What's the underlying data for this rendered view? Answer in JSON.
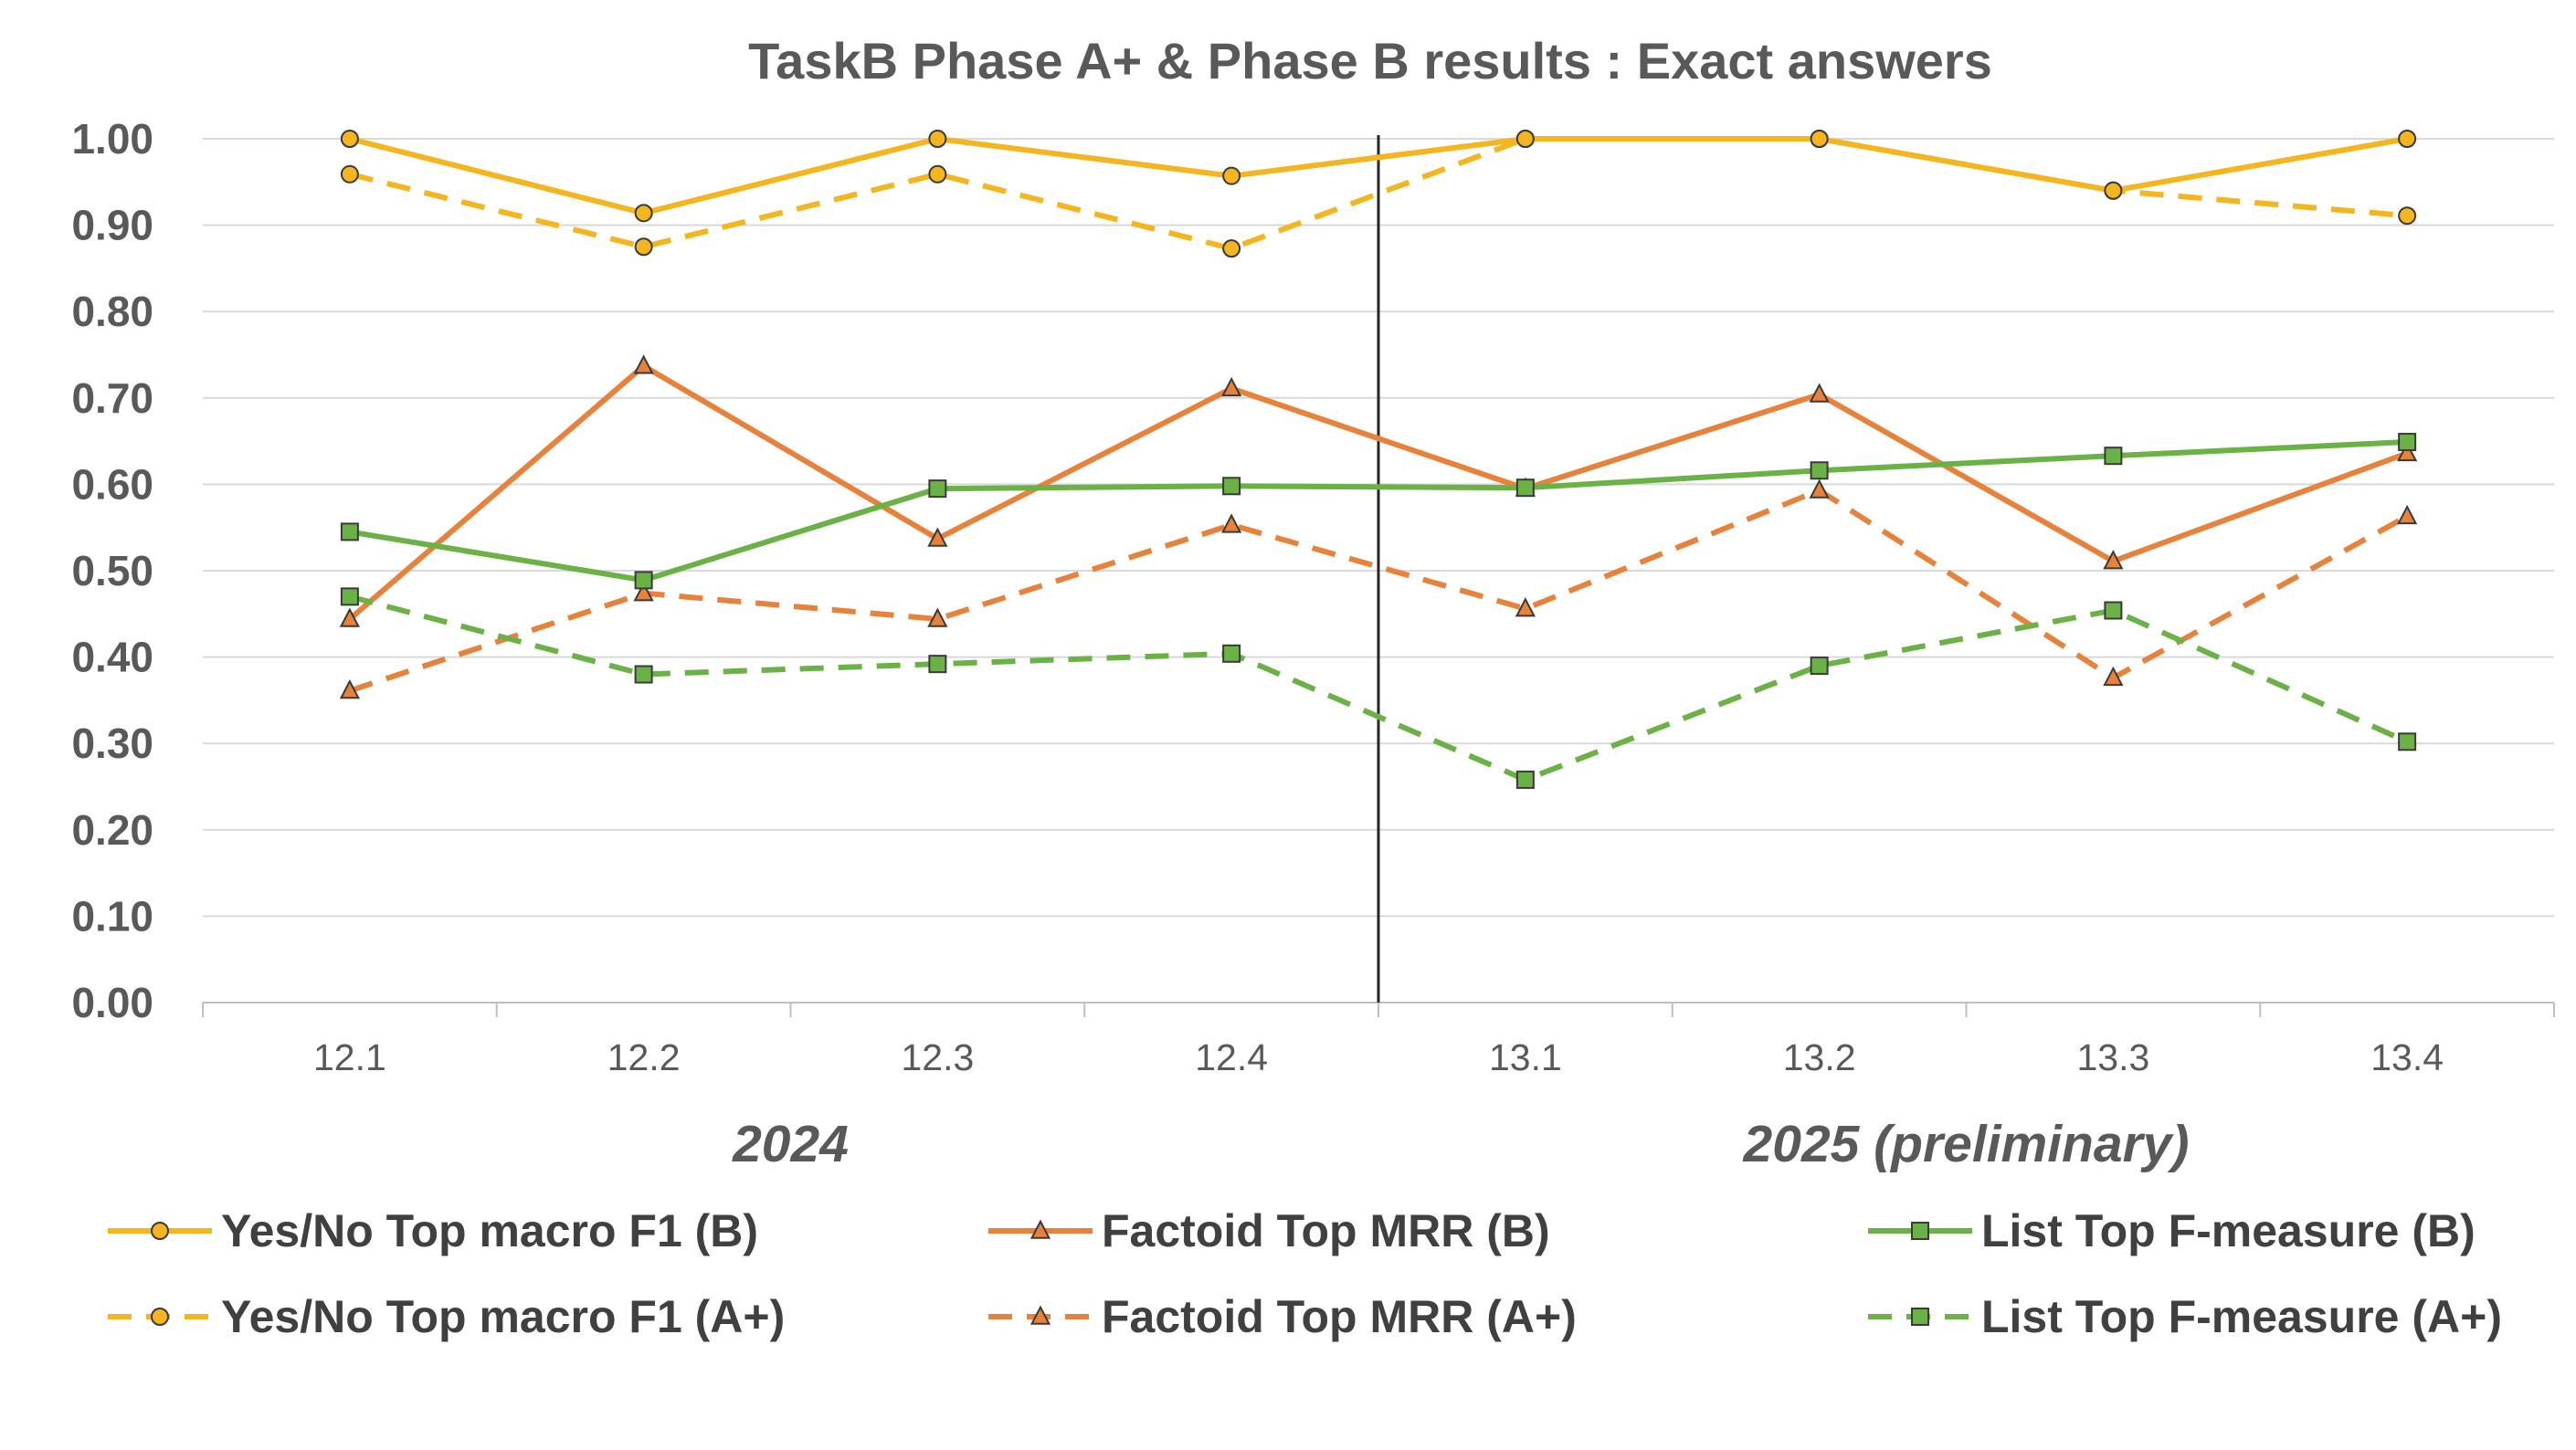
{
  "chart_data": {
    "type": "line",
    "title": "TaskB Phase A+ & Phase B results : Exact answers",
    "categories": [
      "12.1",
      "12.2",
      "12.3",
      "12.4",
      "13.1",
      "13.2",
      "13.3",
      "13.4"
    ],
    "groups": [
      {
        "label": "2024",
        "categories": [
          "12.1",
          "12.2",
          "12.3",
          "12.4"
        ]
      },
      {
        "label": "2025 (preliminary)",
        "categories": [
          "13.1",
          "13.2",
          "13.3",
          "13.4"
        ]
      }
    ],
    "ylim": [
      0,
      1
    ],
    "yticks": [
      "0.00",
      "0.10",
      "0.20",
      "0.30",
      "0.40",
      "0.50",
      "0.60",
      "0.70",
      "0.80",
      "0.90",
      "1.00"
    ],
    "grid": true,
    "legend_position": "bottom",
    "divider_after_category": "12.4",
    "series": [
      {
        "name": "Yes/No Top macro F1 (B)",
        "color": "#F5B51E",
        "dash": "solid",
        "marker": "circle",
        "values": [
          1.0,
          0.914,
          1.0,
          0.957,
          1.0,
          1.0,
          0.94,
          1.0
        ]
      },
      {
        "name": "Yes/No Top macro F1 (A+)",
        "color": "#F5B51E",
        "dash": "dashed",
        "marker": "circle",
        "values": [
          0.959,
          0.875,
          0.959,
          0.873,
          1.0,
          1.0,
          0.94,
          0.911
        ]
      },
      {
        "name": "Factoid Top MRR (B)",
        "color": "#E8823A",
        "dash": "solid",
        "marker": "triangle",
        "values": [
          0.444,
          0.737,
          0.537,
          0.711,
          0.595,
          0.704,
          0.511,
          0.636
        ]
      },
      {
        "name": "Factoid Top MRR (A+)",
        "color": "#E8823A",
        "dash": "dashed",
        "marker": "triangle",
        "values": [
          0.361,
          0.474,
          0.444,
          0.553,
          0.456,
          0.593,
          0.376,
          0.563
        ]
      },
      {
        "name": "List Top F-measure (B)",
        "color": "#6AB245",
        "dash": "solid",
        "marker": "square",
        "values": [
          0.545,
          0.489,
          0.595,
          0.598,
          0.596,
          0.616,
          0.633,
          0.649
        ]
      },
      {
        "name": "List Top F-measure (A+)",
        "color": "#6AB245",
        "dash": "dashed",
        "marker": "square",
        "values": [
          0.47,
          0.38,
          0.392,
          0.404,
          0.258,
          0.39,
          0.454,
          0.302
        ]
      }
    ]
  }
}
